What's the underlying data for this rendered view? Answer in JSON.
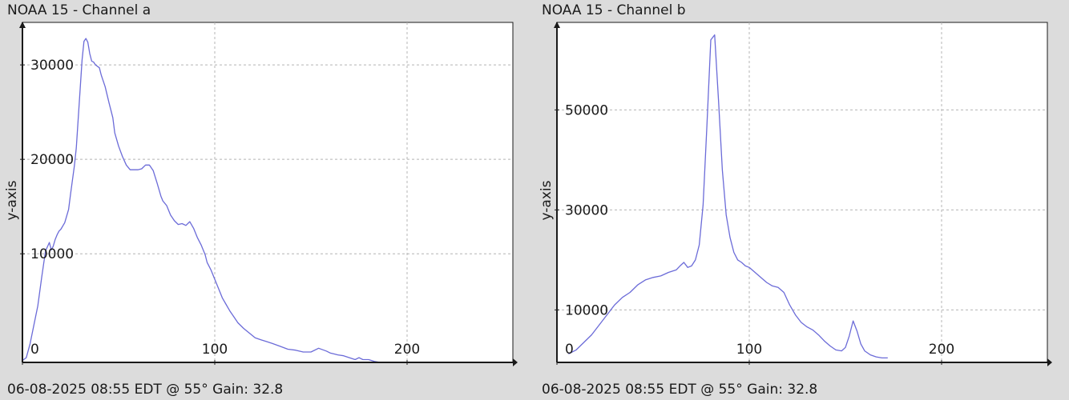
{
  "charts": [
    {
      "id": "a",
      "title": "NOAA 15 - Channel a",
      "footer": "06-08-2025 08:55 EDT @ 55° Gain: 32.8"
    },
    {
      "id": "b",
      "title": "NOAA 15 - Channel b",
      "footer": "06-08-2025 08:55 EDT @ 55° Gain: 32.8"
    }
  ],
  "colors": {
    "line": "#6b6bd8",
    "grid": "#b4b4b4",
    "axis": "#1a1a1a",
    "plot_bg": "#ffffff",
    "page_bg": "#dcdcdc"
  },
  "chart_data": [
    {
      "type": "line",
      "title": "NOAA 15 - Channel a",
      "xlabel": "",
      "ylabel": "y-axis",
      "xlim": [
        0,
        255
      ],
      "ylim": [
        -1500,
        34500
      ],
      "xticks": [
        0,
        100,
        200
      ],
      "xtick_labels": [
        "0",
        "100",
        "200"
      ],
      "yticks": [
        10000,
        20000,
        30000
      ],
      "ytick_labels": [
        "10000",
        "20000",
        "30000"
      ],
      "grid": true,
      "series": [
        {
          "x": [
            0,
            2,
            4,
            6,
            8,
            10,
            12,
            14,
            15,
            16,
            17,
            18,
            19,
            20,
            22,
            24,
            25,
            27,
            28,
            30,
            31,
            32,
            33,
            34,
            35,
            36,
            37,
            38,
            40,
            41,
            43,
            45,
            47,
            48,
            50,
            52,
            54,
            56,
            58,
            60,
            62,
            64,
            66,
            68,
            70,
            72,
            73,
            75,
            77,
            79,
            81,
            83,
            85,
            87,
            89,
            91,
            93,
            95,
            96,
            98,
            100,
            102,
            104,
            106,
            108,
            110,
            112,
            115,
            118,
            121,
            124,
            127,
            130,
            134,
            138,
            142,
            146,
            150,
            154,
            158,
            160,
            162,
            164,
            167,
            170,
            173,
            175,
            177,
            180,
            183,
            186,
            190,
            194
          ],
          "values": [
            -1300,
            -1000,
            500,
            2500,
            4500,
            7500,
            10300,
            11200,
            10400,
            10800,
            11500,
            12000,
            12400,
            12600,
            13300,
            14700,
            16300,
            19300,
            21200,
            27400,
            30500,
            32500,
            32800,
            32400,
            31200,
            30400,
            30300,
            30000,
            29700,
            28900,
            27700,
            26000,
            24400,
            22800,
            21400,
            20300,
            19400,
            18900,
            18900,
            18900,
            19000,
            19400,
            19400,
            18800,
            17500,
            16100,
            15600,
            15100,
            14100,
            13500,
            13100,
            13200,
            13000,
            13400,
            12700,
            11700,
            10900,
            9900,
            9100,
            8300,
            7300,
            6300,
            5300,
            4600,
            3900,
            3300,
            2700,
            2100,
            1600,
            1100,
            900,
            700,
            500,
            200,
            -100,
            -200,
            -400,
            -400,
            0,
            -300,
            -500,
            -600,
            -700,
            -800,
            -1000,
            -1200,
            -1000,
            -1200,
            -1200,
            -1400,
            -1500,
            -1500,
            -1500
          ]
        }
      ]
    },
    {
      "type": "line",
      "title": "NOAA 15 - Channel b",
      "xlabel": "",
      "ylabel": "y-axis",
      "xlim": [
        0,
        255
      ],
      "ylim": [
        -500,
        67500
      ],
      "xticks": [
        0,
        100,
        200
      ],
      "xtick_labels": [
        "0",
        "100",
        "200"
      ],
      "yticks": [
        10000,
        30000,
        50000
      ],
      "ytick_labels": [
        "10000",
        "30000",
        "50000"
      ],
      "grid": true,
      "series": [
        {
          "x": [
            6,
            10,
            14,
            18,
            22,
            26,
            30,
            34,
            38,
            42,
            46,
            50,
            54,
            58,
            62,
            64,
            66,
            68,
            70,
            72,
            74,
            76,
            78,
            80,
            82,
            84,
            86,
            88,
            90,
            92,
            94,
            96,
            98,
            100,
            103,
            106,
            109,
            112,
            115,
            118,
            121,
            124,
            127,
            130,
            133,
            136,
            139,
            142,
            145,
            148,
            150,
            152,
            154,
            156,
            158,
            160,
            163,
            166,
            169,
            172
          ],
          "values": [
            1200,
            2000,
            3500,
            5000,
            7000,
            9000,
            11000,
            12500,
            13500,
            15000,
            16000,
            16500,
            16800,
            17500,
            18000,
            18800,
            19500,
            18500,
            18800,
            20000,
            23000,
            31000,
            47000,
            64000,
            65000,
            52000,
            38000,
            29000,
            24500,
            21500,
            20000,
            19500,
            18800,
            18500,
            17500,
            16500,
            15500,
            14800,
            14500,
            13500,
            11000,
            9000,
            7500,
            6600,
            6000,
            5000,
            3800,
            2800,
            2000,
            1800,
            2500,
            4800,
            7800,
            5800,
            3200,
            1800,
            1000,
            600,
            400,
            400
          ]
        }
      ]
    }
  ]
}
